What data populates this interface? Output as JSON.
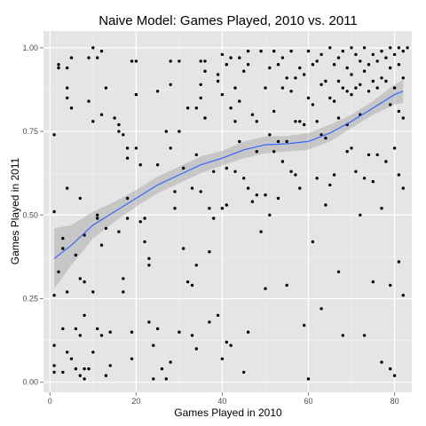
{
  "chart_data": {
    "type": "scatter",
    "title": "Naive Model: Games Played, 2010 vs. 2011",
    "xlabel": "Games Played in 2010",
    "ylabel": "Games Played in 2011",
    "xlim": [
      -1.5,
      84
    ],
    "ylim": [
      -0.03,
      1.05
    ],
    "x_ticks": [
      0,
      20,
      40,
      60,
      80
    ],
    "x_tick_labels": [
      "0",
      "20",
      "40",
      "60",
      "80"
    ],
    "y_ticks": [
      0,
      0.25,
      0.5,
      0.75,
      1.0
    ],
    "y_tick_labels": [
      "0.00",
      "0.25",
      "0.50",
      "0.75",
      "1.00"
    ],
    "grid": true,
    "legend": "none",
    "colors": {
      "panel": "#e5e5e5",
      "grid_major": "#ffffff",
      "grid_minor": "#f2f2f2",
      "point": "#000000",
      "smooth_line": "#3366ff",
      "confidence_band": "#999999"
    },
    "smooth": {
      "x": [
        1,
        5,
        10,
        15,
        20,
        25,
        30,
        35,
        40,
        45,
        50,
        55,
        60,
        65,
        70,
        75,
        80,
        82
      ],
      "y": [
        0.37,
        0.41,
        0.47,
        0.51,
        0.55,
        0.59,
        0.62,
        0.65,
        0.67,
        0.695,
        0.71,
        0.713,
        0.72,
        0.745,
        0.78,
        0.82,
        0.86,
        0.87
      ],
      "lower": [
        0.28,
        0.35,
        0.43,
        0.48,
        0.525,
        0.565,
        0.595,
        0.625,
        0.648,
        0.67,
        0.685,
        0.69,
        0.695,
        0.72,
        0.76,
        0.8,
        0.83,
        0.835
      ],
      "upper": [
        0.46,
        0.47,
        0.51,
        0.54,
        0.575,
        0.615,
        0.645,
        0.675,
        0.692,
        0.72,
        0.735,
        0.736,
        0.745,
        0.77,
        0.8,
        0.84,
        0.89,
        0.905
      ]
    },
    "points": [
      [
        1,
        0.03
      ],
      [
        1,
        0.05
      ],
      [
        1,
        0.11
      ],
      [
        1,
        0.26
      ],
      [
        1,
        0.51
      ],
      [
        1,
        0.74
      ],
      [
        2,
        0.33
      ],
      [
        2,
        0.95
      ],
      [
        2,
        0.94
      ],
      [
        3,
        0.4
      ],
      [
        3,
        0.43
      ],
      [
        3,
        0.16
      ],
      [
        3,
        0.03
      ],
      [
        4,
        0.94
      ],
      [
        4,
        0.88
      ],
      [
        4,
        0.85
      ],
      [
        4,
        0.58
      ],
      [
        4,
        0.27
      ],
      [
        4,
        0.09
      ],
      [
        5,
        0.97
      ],
      [
        5,
        0.82
      ],
      [
        5,
        0.07
      ],
      [
        6,
        0.04
      ],
      [
        6,
        0.16
      ],
      [
        6,
        0.38
      ],
      [
        7,
        0.31
      ],
      [
        7,
        0.55
      ],
      [
        7,
        0.02
      ],
      [
        7,
        0.14
      ],
      [
        8,
        0.01
      ],
      [
        8,
        0.04
      ],
      [
        8,
        0.2
      ],
      [
        8,
        0.3
      ],
      [
        8,
        0.44
      ],
      [
        9,
        0.97
      ],
      [
        9,
        0.84
      ],
      [
        9,
        0.04
      ],
      [
        10,
        1.0
      ],
      [
        10,
        0.78
      ],
      [
        10,
        0.27
      ],
      [
        10,
        0.09
      ],
      [
        11,
        0.97
      ],
      [
        11,
        0.49
      ],
      [
        11,
        0.5
      ],
      [
        11,
        0.16
      ],
      [
        12,
        0.99
      ],
      [
        12,
        0.8
      ],
      [
        12,
        0.41
      ],
      [
        12,
        0.14
      ],
      [
        13,
        0.88
      ],
      [
        13,
        0.46
      ],
      [
        13,
        0.02
      ],
      [
        14,
        0.05
      ],
      [
        14,
        0.15
      ],
      [
        15,
        0.79
      ],
      [
        16,
        0.77
      ],
      [
        16,
        0.75
      ],
      [
        16,
        0.45
      ],
      [
        17,
        0.74
      ],
      [
        17,
        0.27
      ],
      [
        17,
        0.31
      ],
      [
        18,
        0.7
      ],
      [
        18,
        0.67
      ],
      [
        18,
        0.55
      ],
      [
        18,
        0.49
      ],
      [
        19,
        0.96
      ],
      [
        19,
        0.15
      ],
      [
        19,
        0.07
      ],
      [
        20,
        0.96
      ],
      [
        20,
        0.86
      ],
      [
        20,
        0.7
      ],
      [
        21,
        0.65
      ],
      [
        21,
        0.48
      ],
      [
        22,
        0.49
      ],
      [
        22,
        0.42
      ],
      [
        23,
        0.37
      ],
      [
        23,
        0.35
      ],
      [
        23,
        0.18
      ],
      [
        24,
        0.11
      ],
      [
        24,
        0.01
      ],
      [
        25,
        0.87
      ],
      [
        25,
        0.65
      ],
      [
        25,
        0.16
      ],
      [
        26,
        0.04
      ],
      [
        27,
        0.75
      ],
      [
        27,
        0.01
      ],
      [
        28,
        0.96
      ],
      [
        28,
        0.89
      ],
      [
        28,
        0.7
      ],
      [
        28,
        0.06
      ],
      [
        29,
        0.57
      ],
      [
        29,
        0.52
      ],
      [
        30,
        0.96
      ],
      [
        30,
        0.75
      ],
      [
        30,
        0.15
      ],
      [
        31,
        0.64
      ],
      [
        31,
        0.4
      ],
      [
        32,
        0.82
      ],
      [
        32,
        0.3
      ],
      [
        33,
        0.58
      ],
      [
        33,
        0.29
      ],
      [
        33,
        0.14
      ],
      [
        34,
        0.82
      ],
      [
        34,
        0.68
      ],
      [
        34,
        0.35
      ],
      [
        34,
        0.1
      ],
      [
        35,
        0.96
      ],
      [
        35,
        0.89
      ],
      [
        35,
        0.85
      ],
      [
        35,
        0.57
      ],
      [
        36,
        0.96
      ],
      [
        36,
        0.93
      ],
      [
        36,
        0.79
      ],
      [
        37,
        0.52
      ],
      [
        37,
        0.39
      ],
      [
        37,
        0.18
      ],
      [
        38,
        0.63
      ],
      [
        38,
        0.49
      ],
      [
        39,
        0.92
      ],
      [
        39,
        0.9
      ],
      [
        39,
        0.2
      ],
      [
        40,
        0.98
      ],
      [
        40,
        0.86
      ],
      [
        40,
        0.52
      ],
      [
        40,
        0.07
      ],
      [
        41,
        0.95
      ],
      [
        41,
        0.64
      ],
      [
        41,
        0.53
      ],
      [
        41,
        0.12
      ],
      [
        42,
        0.97
      ],
      [
        42,
        0.82
      ],
      [
        42,
        0.11
      ],
      [
        43,
        0.88
      ],
      [
        43,
        0.78
      ],
      [
        43,
        0.63
      ],
      [
        44,
        0.97
      ],
      [
        44,
        0.84
      ],
      [
        44,
        0.72
      ],
      [
        45,
        0.93
      ],
      [
        45,
        0.61
      ],
      [
        45,
        0.03
      ],
      [
        46,
        0.99
      ],
      [
        46,
        0.95
      ],
      [
        46,
        0.58
      ],
      [
        46,
        0.15
      ],
      [
        47,
        0.8
      ],
      [
        47,
        0.54
      ],
      [
        48,
        0.78
      ],
      [
        48,
        0.69
      ],
      [
        48,
        0.56
      ],
      [
        49,
        0.99
      ],
      [
        49,
        0.45
      ],
      [
        50,
        0.88
      ],
      [
        50,
        0.56
      ],
      [
        50,
        0.28
      ],
      [
        51,
        0.94
      ],
      [
        51,
        0.74
      ],
      [
        51,
        0.5
      ],
      [
        52,
        0.99
      ],
      [
        52,
        0.81
      ],
      [
        52,
        0.69
      ],
      [
        53,
        0.95
      ],
      [
        53,
        0.72
      ],
      [
        53,
        0.55
      ],
      [
        54,
        0.97
      ],
      [
        54,
        0.88
      ],
      [
        54,
        0.66
      ],
      [
        55,
        0.91
      ],
      [
        55,
        0.72
      ],
      [
        55,
        0.29
      ],
      [
        56,
        0.99
      ],
      [
        56,
        0.87
      ],
      [
        56,
        0.63
      ],
      [
        57,
        0.91
      ],
      [
        57,
        0.78
      ],
      [
        57,
        0.62
      ],
      [
        58,
        0.94
      ],
      [
        58,
        0.78
      ],
      [
        58,
        0.58
      ],
      [
        59,
        0.92
      ],
      [
        59,
        0.77
      ],
      [
        59,
        0.17
      ],
      [
        60,
        0.99
      ],
      [
        60,
        0.85
      ],
      [
        60,
        0.01
      ],
      [
        61,
        0.95
      ],
      [
        61,
        0.83
      ],
      [
        61,
        0.42
      ],
      [
        62,
        0.96
      ],
      [
        62,
        0.78
      ],
      [
        62,
        0.61
      ],
      [
        63,
        0.98
      ],
      [
        63,
        0.89
      ],
      [
        63,
        0.74
      ],
      [
        63,
        0.22
      ],
      [
        64,
        0.9
      ],
      [
        64,
        0.73
      ],
      [
        64,
        0.53
      ],
      [
        65,
        1.0
      ],
      [
        65,
        0.85
      ],
      [
        65,
        0.59
      ],
      [
        66,
        0.95
      ],
      [
        66,
        0.84
      ],
      [
        66,
        0.62
      ],
      [
        67,
        0.97
      ],
      [
        67,
        0.9
      ],
      [
        67,
        0.79
      ],
      [
        67,
        0.33
      ],
      [
        68,
        0.99
      ],
      [
        68,
        0.88
      ],
      [
        68,
        0.14
      ],
      [
        69,
        0.94
      ],
      [
        69,
        0.87
      ],
      [
        69,
        0.77
      ],
      [
        69,
        0.69
      ],
      [
        70,
        1.0
      ],
      [
        70,
        0.92
      ],
      [
        70,
        0.86
      ],
      [
        70,
        0.7
      ],
      [
        71,
        0.98
      ],
      [
        71,
        0.88
      ],
      [
        71,
        0.63
      ],
      [
        72,
        0.96
      ],
      [
        72,
        0.89
      ],
      [
        72,
        0.8
      ],
      [
        72,
        0.5
      ],
      [
        73,
        1.0
      ],
      [
        73,
        0.93
      ],
      [
        73,
        0.61
      ],
      [
        73,
        0.14
      ],
      [
        74,
        0.95
      ],
      [
        74,
        0.87
      ],
      [
        74,
        0.68
      ],
      [
        75,
        0.98
      ],
      [
        75,
        0.9
      ],
      [
        75,
        0.6
      ],
      [
        75,
        0.3
      ],
      [
        76,
        0.96
      ],
      [
        76,
        0.88
      ],
      [
        76,
        0.68
      ],
      [
        77,
        0.99
      ],
      [
        77,
        0.91
      ],
      [
        77,
        0.52
      ],
      [
        77,
        0.06
      ],
      [
        78,
        0.97
      ],
      [
        78,
        0.9
      ],
      [
        78,
        0.66
      ],
      [
        79,
        1.0
      ],
      [
        79,
        0.94
      ],
      [
        79,
        0.83
      ],
      [
        79,
        0.29
      ],
      [
        79,
        0.04
      ],
      [
        80,
        0.98
      ],
      [
        80,
        0.88
      ],
      [
        80,
        0.7
      ],
      [
        80,
        0.02
      ],
      [
        81,
        1.0
      ],
      [
        81,
        0.95
      ],
      [
        81,
        0.81
      ],
      [
        81,
        0.62
      ],
      [
        81,
        0.36
      ],
      [
        82,
        0.99
      ],
      [
        82,
        0.91
      ],
      [
        82,
        0.79
      ],
      [
        82,
        0.58
      ],
      [
        82,
        0.26
      ],
      [
        83,
        1.0
      ]
    ]
  }
}
